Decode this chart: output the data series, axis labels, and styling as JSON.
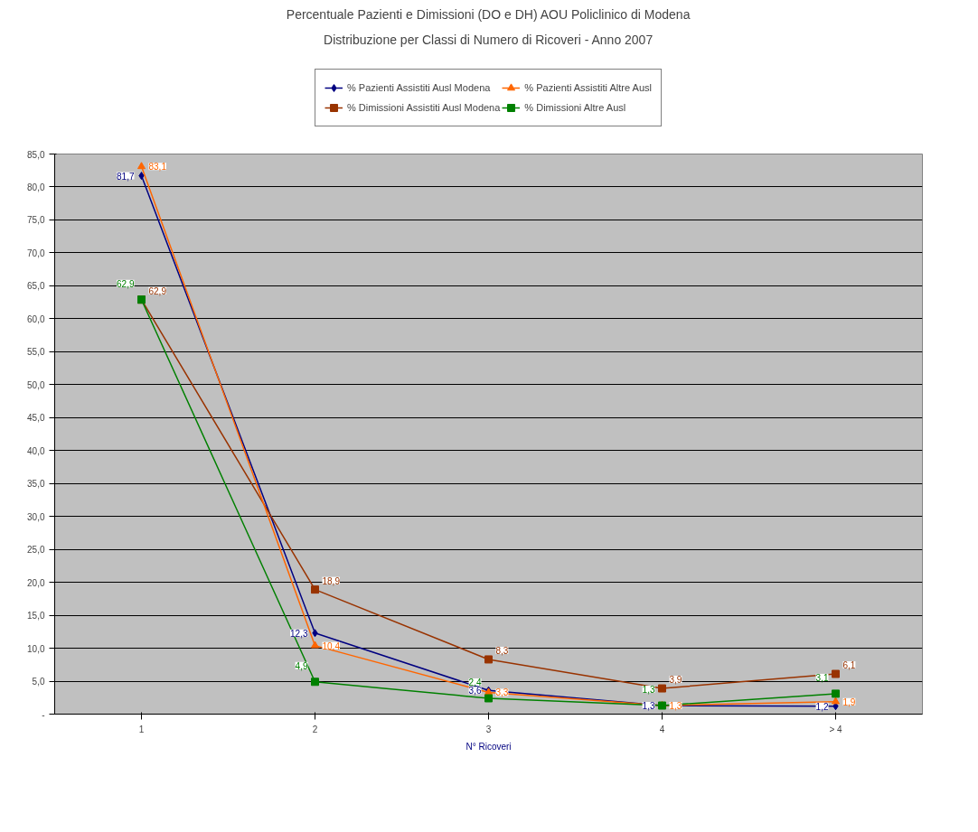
{
  "chart_data": {
    "type": "line",
    "title": "Percentuale Pazienti e Dimissioni (DO e DH) AOU Policlinico di Modena",
    "subtitle": "Distribuzione per Classi di Numero di Ricoveri - Anno 2007",
    "xlabel": "N° Ricoveri",
    "categories": [
      "1",
      "2",
      "3",
      "4",
      "> 4"
    ],
    "series": [
      {
        "name": "% Pazienti Assistiti Ausl Modena",
        "color": "#000080",
        "marker": "diamond",
        "values": [
          81.7,
          12.3,
          3.6,
          1.3,
          1.2
        ],
        "value_labels": [
          "81,7",
          "12,3",
          "3,6",
          "1,3",
          "1,2"
        ]
      },
      {
        "name": "% Dimissioni Assistiti Ausl Modena",
        "color": "#993300",
        "marker": "square",
        "values": [
          62.9,
          18.9,
          8.3,
          3.9,
          6.1
        ],
        "value_labels": [
          "62,9",
          "18,9",
          "8,3",
          "3,9",
          "6,1"
        ]
      },
      {
        "name": "% Pazienti Assistiti Altre Ausl",
        "color": "#ff6600",
        "marker": "triangle",
        "values": [
          83.1,
          10.4,
          3.3,
          1.3,
          1.9
        ],
        "value_labels": [
          "83,1",
          "10,4",
          "3,3",
          "1,3",
          "1,9"
        ]
      },
      {
        "name": "% Dimissioni Altre Ausl",
        "color": "#008000",
        "marker": "square",
        "values": [
          62.9,
          4.9,
          2.4,
          1.3,
          3.1
        ],
        "value_labels": [
          "62,9",
          "4,9",
          "2,4",
          "1,3",
          "3,1"
        ]
      }
    ],
    "ylim": [
      0,
      85
    ],
    "yticks": [
      {
        "value": 0,
        "label": "-"
      },
      {
        "value": 5,
        "label": "5,0"
      },
      {
        "value": 10,
        "label": "10,0"
      },
      {
        "value": 15,
        "label": "15,0"
      },
      {
        "value": 20,
        "label": "20,0"
      },
      {
        "value": 25,
        "label": "25,0"
      },
      {
        "value": 30,
        "label": "30,0"
      },
      {
        "value": 35,
        "label": "35,0"
      },
      {
        "value": 40,
        "label": "40,0"
      },
      {
        "value": 45,
        "label": "45,0"
      },
      {
        "value": 50,
        "label": "50,0"
      },
      {
        "value": 55,
        "label": "55,0"
      },
      {
        "value": 60,
        "label": "60,0"
      },
      {
        "value": 65,
        "label": "65,0"
      },
      {
        "value": 70,
        "label": "70,0"
      },
      {
        "value": 75,
        "label": "75,0"
      },
      {
        "value": 80,
        "label": "80,0"
      },
      {
        "value": 85,
        "label": "85,0"
      }
    ],
    "grid": "y",
    "legend": "top",
    "line_style": "solid"
  }
}
